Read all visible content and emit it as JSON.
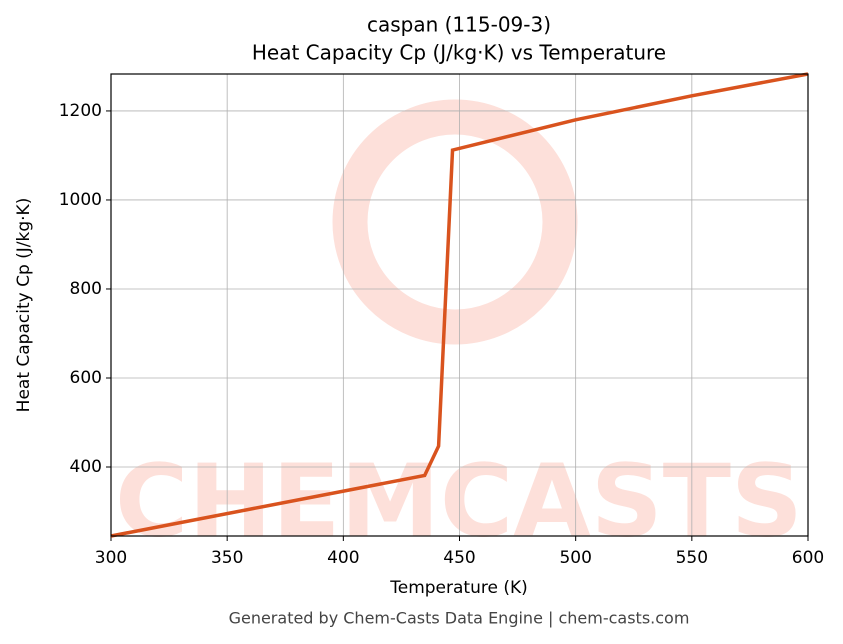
{
  "chart_data": {
    "type": "line",
    "title": "caspan (115-09-3)",
    "subtitle": "Heat Capacity Cp (J/kg·K) vs Temperature",
    "x_label": "Temperature (K)",
    "y_label": "Heat Capacity Cp (J/kg·K)",
    "footer": "Generated by Chem-Casts Data Engine | chem-casts.com",
    "watermark": "CHEMCASTS",
    "x": [
      300,
      435,
      441,
      447,
      500,
      550,
      600
    ],
    "series": [
      {
        "name": "Cp",
        "color": "#d9531e",
        "values": [
          245,
          381,
          447,
          1112,
          1180,
          1234,
          1283
        ]
      }
    ],
    "xlim": [
      300,
      600
    ],
    "xticks": [
      300,
      350,
      400,
      450,
      500,
      550,
      600
    ],
    "ylim": [
      245,
      1283
    ],
    "yticks": [
      400,
      600,
      800,
      1000,
      1200
    ],
    "grid": true
  }
}
